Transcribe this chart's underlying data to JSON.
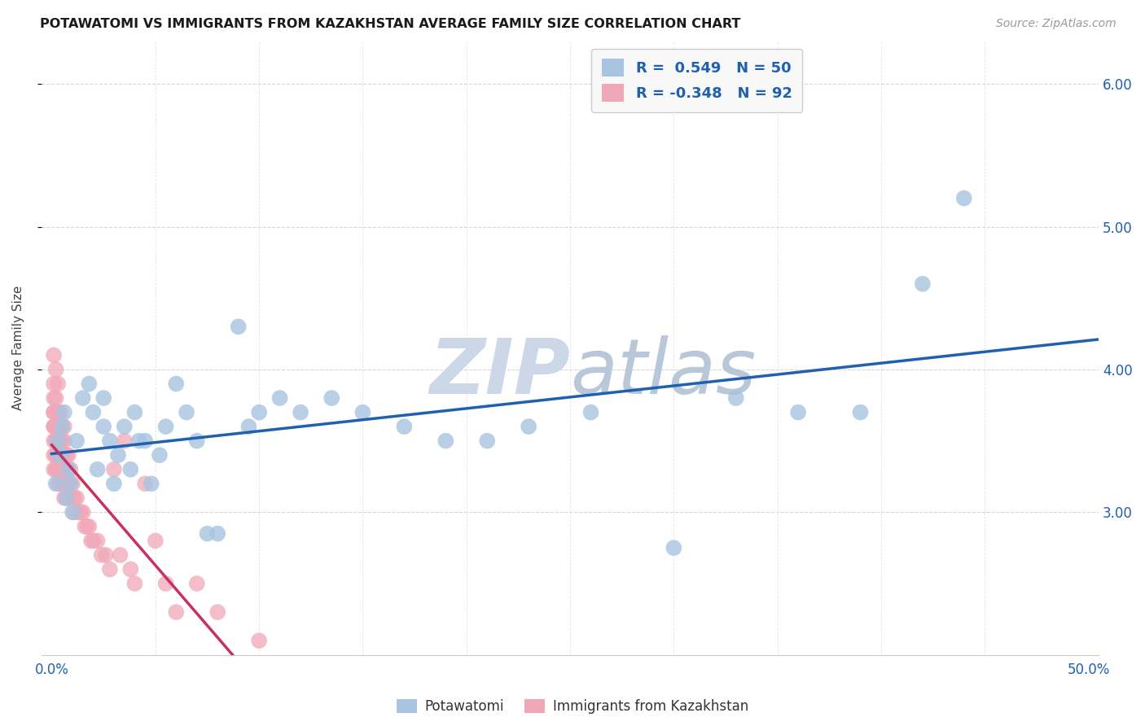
{
  "title": "POTAWATOMI VS IMMIGRANTS FROM KAZAKHSTAN AVERAGE FAMILY SIZE CORRELATION CHART",
  "source": "Source: ZipAtlas.com",
  "ylabel": "Average Family Size",
  "xlim": [
    -0.005,
    0.505
  ],
  "ylim": [
    2.0,
    6.3
  ],
  "yticks": [
    3.0,
    4.0,
    5.0,
    6.0
  ],
  "xtick_positions": [
    0.0,
    0.5
  ],
  "xtick_labels": [
    "0.0%",
    "50.0%"
  ],
  "ytick_labels_right": [
    "3.00",
    "4.00",
    "5.00",
    "6.00"
  ],
  "blue_R": 0.549,
  "blue_N": 50,
  "pink_R": -0.348,
  "pink_N": 92,
  "blue_color": "#a8c4e0",
  "blue_line_color": "#2060b0",
  "pink_color": "#f0a8b8",
  "pink_line_color": "#c83060",
  "background_color": "#ffffff",
  "grid_color": "#cccccc",
  "watermark_color": "#ccd8e8",
  "blue_scatter_x": [
    0.002,
    0.004,
    0.003,
    0.008,
    0.005,
    0.007,
    0.006,
    0.009,
    0.01,
    0.012,
    0.015,
    0.018,
    0.02,
    0.022,
    0.025,
    0.025,
    0.028,
    0.03,
    0.032,
    0.035,
    0.038,
    0.04,
    0.042,
    0.045,
    0.048,
    0.052,
    0.055,
    0.06,
    0.065,
    0.07,
    0.075,
    0.08,
    0.09,
    0.095,
    0.1,
    0.11,
    0.12,
    0.135,
    0.15,
    0.17,
    0.19,
    0.21,
    0.23,
    0.26,
    0.3,
    0.33,
    0.36,
    0.39,
    0.42,
    0.44
  ],
  "blue_scatter_y": [
    3.2,
    3.4,
    3.5,
    3.3,
    3.6,
    3.1,
    3.7,
    3.2,
    3.0,
    3.5,
    3.8,
    3.9,
    3.7,
    3.3,
    3.6,
    3.8,
    3.5,
    3.2,
    3.4,
    3.6,
    3.3,
    3.7,
    3.5,
    3.5,
    3.2,
    3.4,
    3.6,
    3.9,
    3.7,
    3.5,
    2.85,
    2.85,
    4.3,
    3.6,
    3.7,
    3.8,
    3.7,
    3.8,
    3.7,
    3.6,
    3.5,
    3.5,
    3.6,
    3.7,
    2.75,
    3.8,
    3.7,
    3.7,
    4.6,
    5.2
  ],
  "pink_scatter_x": [
    0.001,
    0.001,
    0.001,
    0.001,
    0.001,
    0.001,
    0.001,
    0.001,
    0.001,
    0.001,
    0.002,
    0.002,
    0.002,
    0.002,
    0.002,
    0.002,
    0.002,
    0.002,
    0.002,
    0.002,
    0.002,
    0.003,
    0.003,
    0.003,
    0.003,
    0.003,
    0.003,
    0.003,
    0.003,
    0.003,
    0.003,
    0.004,
    0.004,
    0.004,
    0.004,
    0.004,
    0.004,
    0.004,
    0.004,
    0.004,
    0.005,
    0.005,
    0.005,
    0.005,
    0.005,
    0.005,
    0.005,
    0.006,
    0.006,
    0.006,
    0.006,
    0.006,
    0.006,
    0.007,
    0.007,
    0.007,
    0.007,
    0.008,
    0.008,
    0.008,
    0.008,
    0.009,
    0.009,
    0.01,
    0.01,
    0.011,
    0.011,
    0.012,
    0.013,
    0.014,
    0.015,
    0.016,
    0.017,
    0.018,
    0.019,
    0.02,
    0.022,
    0.024,
    0.026,
    0.028,
    0.03,
    0.033,
    0.035,
    0.038,
    0.04,
    0.045,
    0.05,
    0.055,
    0.06,
    0.07,
    0.08,
    0.1
  ],
  "pink_scatter_y": [
    3.8,
    3.9,
    4.1,
    3.7,
    3.6,
    3.5,
    3.4,
    3.3,
    3.7,
    3.6,
    3.8,
    4.0,
    3.6,
    3.5,
    3.4,
    3.3,
    3.7,
    3.5,
    3.6,
    3.4,
    3.3,
    3.7,
    3.9,
    3.5,
    3.4,
    3.3,
    3.6,
    3.5,
    3.4,
    3.3,
    3.2,
    3.5,
    3.4,
    3.3,
    3.7,
    3.5,
    3.4,
    3.3,
    3.6,
    3.2,
    3.5,
    3.4,
    3.3,
    3.6,
    3.4,
    3.2,
    3.3,
    3.5,
    3.4,
    3.3,
    3.2,
    3.6,
    3.1,
    3.4,
    3.3,
    3.2,
    3.1,
    3.4,
    3.3,
    3.2,
    3.1,
    3.3,
    3.2,
    3.2,
    3.1,
    3.1,
    3.0,
    3.1,
    3.0,
    3.0,
    3.0,
    2.9,
    2.9,
    2.9,
    2.8,
    2.8,
    2.8,
    2.7,
    2.7,
    2.6,
    3.3,
    2.7,
    3.5,
    2.6,
    2.5,
    3.2,
    2.8,
    2.5,
    2.3,
    2.5,
    2.3,
    2.1
  ]
}
